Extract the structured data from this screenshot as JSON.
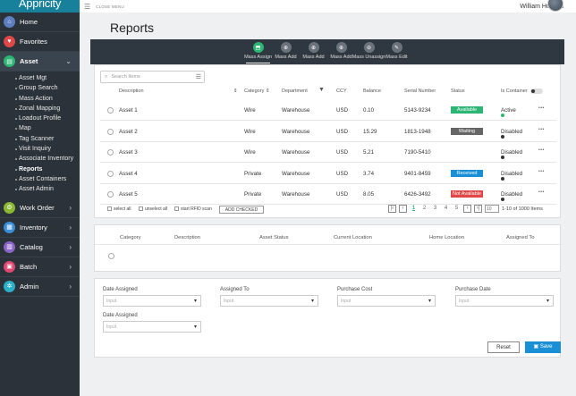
{
  "app": {
    "name": "Appricity"
  },
  "topbar": {
    "close_menu": "CLOSE MENU",
    "user": "William Hughes"
  },
  "sidebar": {
    "items": [
      {
        "label": "Home",
        "color": "#5b7fbf",
        "icon": "⌂"
      },
      {
        "label": "Favorites",
        "color": "#e04747",
        "icon": "♥"
      },
      {
        "label": "Asset",
        "color": "#2bb673",
        "icon": "▤"
      },
      {
        "label": "Work Order",
        "color": "#8ab832",
        "icon": "⚙"
      },
      {
        "label": "Inventory",
        "color": "#3a8fd6",
        "icon": "▦"
      },
      {
        "label": "Catalog",
        "color": "#8b64c8",
        "icon": "▥"
      },
      {
        "label": "Batch",
        "color": "#e04773",
        "icon": "▣"
      },
      {
        "label": "Admin",
        "color": "#2ab0c8",
        "icon": "✲"
      }
    ],
    "asset_sub": [
      "Asset Mgt",
      "Group Search",
      "Mass Action",
      "Zonal Mapping",
      "Loadout Profile",
      "Map",
      "Tag Scanner",
      "Visit Inquiry",
      "Associate Inventory",
      "Reports",
      "Asset Containers",
      "Asset Admin"
    ]
  },
  "page": {
    "title": "Reports"
  },
  "toolbar": {
    "buttons": [
      "Mass Assign",
      "Mass Add",
      "Mass Add",
      "Mass Add",
      "Mass Unassign",
      "Mass Edit"
    ]
  },
  "table": {
    "search_placeholder": "Search Items",
    "headers": {
      "description": "Description",
      "category": "Category",
      "department": "Department",
      "ccy": "CCY",
      "balance": "Balance",
      "serial": "Serial Number",
      "status": "Status",
      "is_container": "Is Container"
    },
    "rows": [
      {
        "description": "Asset 1",
        "category": "Wire",
        "department": "Warehouse",
        "ccy": "USD",
        "balance": "0.10",
        "serial": "5143-9234",
        "status": "Available",
        "status_color": "#2bb673",
        "container": "Active",
        "container_color": "#2bb673"
      },
      {
        "description": "Asset 2",
        "category": "Wire",
        "department": "Warehouse",
        "ccy": "USD",
        "balance": "15.29",
        "serial": "1813-1948",
        "status": "Waiting",
        "status_color": "#666666",
        "container": "Disabled",
        "container_color": "#333333"
      },
      {
        "description": "Asset 3",
        "category": "Wire",
        "department": "Warehouse",
        "ccy": "USD",
        "balance": "5.21",
        "serial": "7190-5410",
        "status": "",
        "status_color": "",
        "container": "Disabled",
        "container_color": "#333333"
      },
      {
        "description": "Asset 4",
        "category": "Private",
        "department": "Warehouse",
        "ccy": "USD",
        "balance": "3.74",
        "serial": "9401-8459",
        "status": "Received",
        "status_color": "#1a8fd6",
        "container": "Disabled",
        "container_color": "#333333"
      },
      {
        "description": "Asset 5",
        "category": "Private",
        "department": "Warehouse",
        "ccy": "USD",
        "balance": "8.05",
        "serial": "6426-3492",
        "status": "Not Available",
        "status_color": "#e04747",
        "container": "Disabled",
        "container_color": "#333333"
      }
    ],
    "footer": {
      "select_all": "select all",
      "unselect_all": "unselect all",
      "rfid": "start RFID scan",
      "add_checked": "ADD CHECKED",
      "pages": [
        "1",
        "2",
        "3",
        "4",
        "5"
      ],
      "per_page": "10",
      "range": "1-10 of 1000 Items"
    }
  },
  "assign_table": {
    "headers": [
      "Category",
      "Description",
      "Asset Status",
      "Current Location",
      "Home Location",
      "Assigned To"
    ]
  },
  "form": {
    "fields": [
      {
        "label": "Date Assigned",
        "placeholder": "Input"
      },
      {
        "label": "Assigned To",
        "placeholder": "Input"
      },
      {
        "label": "Purchase Cost",
        "placeholder": "Input"
      },
      {
        "label": "Purchase Date",
        "placeholder": "Input"
      },
      {
        "label": "Date Assigned",
        "placeholder": "Input"
      }
    ],
    "reset": "Reset",
    "save": "Save"
  }
}
